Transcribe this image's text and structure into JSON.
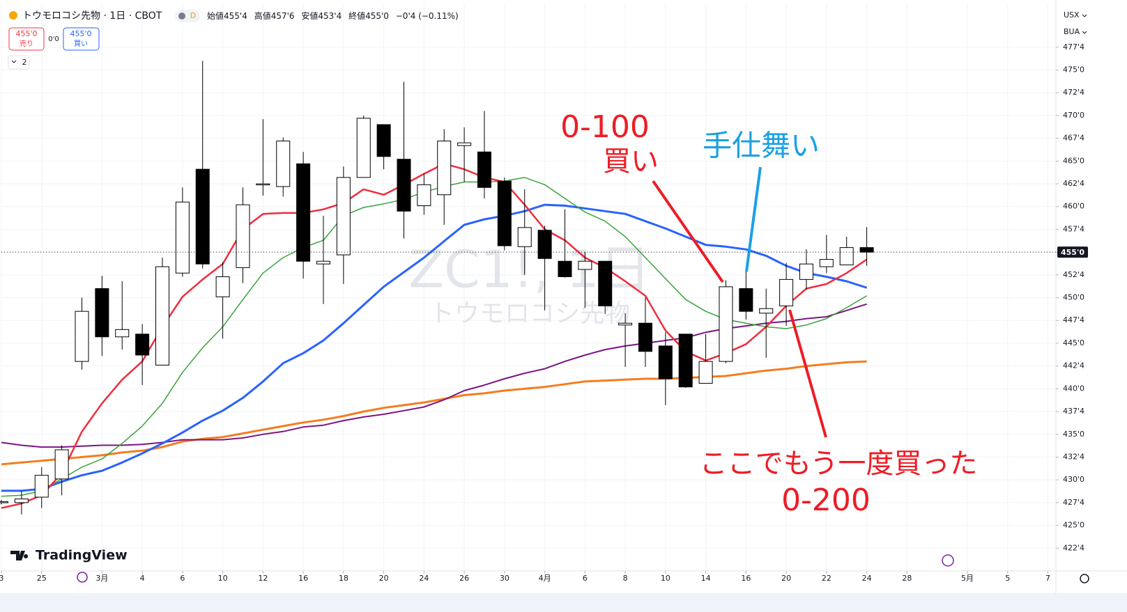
{
  "header": {
    "title": "トウモロコシ先物 · 1日 · CBOT",
    "badge": "D",
    "ohlc": [
      {
        "label": "始値",
        "value": "455'4"
      },
      {
        "label": "高値",
        "value": "457'6"
      },
      {
        "label": "安値",
        "value": "453'4"
      },
      {
        "label": "終値",
        "value": "455'0"
      }
    ],
    "change": "−0'4 (−0.11%)"
  },
  "trade": {
    "sell": {
      "price": "455'0",
      "label": "売り"
    },
    "spread": "0'0",
    "buy": {
      "price": "455'0",
      "label": "買い"
    }
  },
  "indicator_count": "2",
  "currency": "USX",
  "unit": "BUA",
  "watermark": [
    "ZC1!, 1日",
    "トウモロコシ先物"
  ],
  "logo": "TradingView",
  "chart_data": {
    "type": "candlestick",
    "up_color": "#ffffff",
    "down_color": "#000000",
    "x": [
      0,
      1,
      2,
      3,
      4,
      5,
      6,
      7,
      8,
      9,
      10,
      11,
      12,
      13,
      14,
      15,
      16,
      17,
      18,
      19,
      20,
      21,
      22,
      23,
      24,
      25,
      26,
      27,
      28,
      29,
      30,
      31,
      32,
      33,
      34,
      35,
      36,
      37,
      38,
      39,
      40,
      41,
      42,
      43
    ],
    "open": [
      427.5,
      427.5,
      428.1,
      430.1,
      443.0,
      451.0,
      445.7,
      446.0,
      442.6,
      452.7,
      464.1,
      450.1,
      453.3,
      462.4,
      462.2,
      464.7,
      453.7,
      454.7,
      463.2,
      469.0,
      465.2,
      460.1,
      461.3,
      466.7,
      466.0,
      462.8,
      455.6,
      457.4,
      454.0,
      453.1,
      454.0,
      447.0,
      447.2,
      444.7,
      446.0,
      440.6,
      443.0,
      451.0,
      448.3,
      449.1,
      452.0,
      453.4,
      453.6,
      455.5
    ],
    "high": [
      427.8,
      428.8,
      431.4,
      433.8,
      450.0,
      452.4,
      451.8,
      447.1,
      454.4,
      462.1,
      476.0,
      453.9,
      462.1,
      469.6,
      467.6,
      466.0,
      459.0,
      464.4,
      470.0,
      469.0,
      473.7,
      463.6,
      468.5,
      468.7,
      470.5,
      463.2,
      461.9,
      457.9,
      459.7,
      455.0,
      454.0,
      448.3,
      450.0,
      446.2,
      446.0,
      446.0,
      451.9,
      453.0,
      451.0,
      453.8,
      455.3,
      456.9,
      456.7,
      457.75
    ],
    "low": [
      427.3,
      426.2,
      426.9,
      428.3,
      442.1,
      443.6,
      444.3,
      440.4,
      442.6,
      452.3,
      453.2,
      445.5,
      451.6,
      461.2,
      461.1,
      452.1,
      449.3,
      451.5,
      463.2,
      464.1,
      456.5,
      459.1,
      458.0,
      462.7,
      460.9,
      455.2,
      452.5,
      448.6,
      452.2,
      448.9,
      448.2,
      442.4,
      442.4,
      438.2,
      440.1,
      440.6,
      442.8,
      447.6,
      443.4,
      446.9,
      450.9,
      452.7,
      453.6,
      453.5
    ],
    "close": [
      427.6,
      427.9,
      430.5,
      433.3,
      448.5,
      445.7,
      446.5,
      443.7,
      453.4,
      460.5,
      453.7,
      452.3,
      460.2,
      462.5,
      467.2,
      454.0,
      454.0,
      463.2,
      469.7,
      465.5,
      459.5,
      462.4,
      467.2,
      467.0,
      462.1,
      455.7,
      457.7,
      454.3,
      452.3,
      454.0,
      449.1,
      447.2,
      444.1,
      441.1,
      440.2,
      443.0,
      451.2,
      448.5,
      448.8,
      452.0,
      453.7,
      454.2,
      455.5,
      455.0
    ],
    "series": [
      {
        "color": "#f57c1f",
        "width": 3,
        "values": [
          431.7,
          431.9,
          432.1,
          432.3,
          432.5,
          432.7,
          433.0,
          433.2,
          433.6,
          434.2,
          434.5,
          434.7,
          435.1,
          435.5,
          435.9,
          436.3,
          436.6,
          437.0,
          437.5,
          437.9,
          438.2,
          438.5,
          438.9,
          439.3,
          439.5,
          439.8,
          440.0,
          440.2,
          440.5,
          440.8,
          440.9,
          441.0,
          441.1,
          441.1,
          441.2,
          441.3,
          441.4,
          441.7,
          442.0,
          442.2,
          442.5,
          442.7,
          442.9,
          443.0
        ]
      },
      {
        "color": "#7b1582",
        "width": 2,
        "values": [
          434.1,
          433.8,
          433.6,
          433.6,
          433.7,
          433.8,
          433.8,
          433.9,
          434.1,
          434.4,
          434.4,
          434.4,
          434.6,
          435.0,
          435.3,
          435.8,
          436.0,
          436.5,
          436.9,
          437.2,
          437.6,
          438.0,
          438.8,
          439.8,
          440.4,
          441.1,
          441.7,
          442.2,
          443.0,
          443.7,
          444.3,
          444.7,
          445.0,
          445.3,
          445.6,
          446.2,
          446.6,
          446.9,
          447.2,
          447.4,
          447.7,
          447.9,
          448.6,
          449.3
        ]
      },
      {
        "color": "#2962ff",
        "width": 3,
        "values": [
          428.8,
          428.8,
          429.0,
          429.8,
          430.5,
          431.0,
          431.9,
          432.9,
          434.0,
          435.2,
          436.5,
          437.6,
          439.0,
          440.8,
          442.8,
          443.9,
          445.3,
          447.2,
          449.2,
          451.2,
          452.8,
          454.4,
          456.2,
          458.0,
          458.6,
          459.0,
          459.5,
          460.2,
          460.1,
          459.8,
          459.5,
          459.2,
          458.4,
          457.6,
          456.7,
          455.8,
          455.6,
          455.3,
          454.6,
          453.5,
          452.7,
          452.3,
          451.8,
          451.1
        ]
      },
      {
        "color": "#3ba33b",
        "width": 1.5,
        "values": [
          428.2,
          428.3,
          428.8,
          430.1,
          431.4,
          432.3,
          434.0,
          435.9,
          438.4,
          441.8,
          444.5,
          446.8,
          449.8,
          452.7,
          454.4,
          455.5,
          456.3,
          459.0,
          459.9,
          460.3,
          460.8,
          461.6,
          462.2,
          462.7,
          462.7,
          462.8,
          463.2,
          462.4,
          460.9,
          459.4,
          458.4,
          456.7,
          454.4,
          452.1,
          449.8,
          448.5,
          447.6,
          447.2,
          446.8,
          446.6,
          447.0,
          447.7,
          448.9,
          450.2
        ]
      },
      {
        "color": "#ef2c3c",
        "width": 2.5,
        "values": [
          426.9,
          427.4,
          428.3,
          430.7,
          435.3,
          438.4,
          441.0,
          443.0,
          446.8,
          450.1,
          452.0,
          453.7,
          457.5,
          459.2,
          459.3,
          459.3,
          459.7,
          460.4,
          461.9,
          461.3,
          462.4,
          463.6,
          464.7,
          464.1,
          463.2,
          462.7,
          460.2,
          457.5,
          456.3,
          454.4,
          453.3,
          451.8,
          450.2,
          446.4,
          444.1,
          443.1,
          443.9,
          444.9,
          446.8,
          449.1,
          451.0,
          451.5,
          452.7,
          454.2
        ]
      }
    ],
    "last_price": {
      "value": 455,
      "label": "455'0"
    },
    "xlim": [
      0,
      52.4
    ],
    "ylim": [
      420,
      482.3
    ],
    "grid": true,
    "xticks": [
      {
        "value": 0,
        "label": "3"
      },
      {
        "value": 2,
        "label": "25"
      },
      {
        "value": 5,
        "label": "3月"
      },
      {
        "value": 7,
        "label": "4"
      },
      {
        "value": 9,
        "label": "6"
      },
      {
        "value": 11,
        "label": "10"
      },
      {
        "value": 13,
        "label": "12"
      },
      {
        "value": 15,
        "label": "16"
      },
      {
        "value": 17,
        "label": "18"
      },
      {
        "value": 19,
        "label": "20"
      },
      {
        "value": 21,
        "label": "24"
      },
      {
        "value": 23,
        "label": "26"
      },
      {
        "value": 25,
        "label": "30"
      },
      {
        "value": 27,
        "label": "4月"
      },
      {
        "value": 29,
        "label": "6"
      },
      {
        "value": 31,
        "label": "8"
      },
      {
        "value": 33,
        "label": "10"
      },
      {
        "value": 35,
        "label": "14"
      },
      {
        "value": 37,
        "label": "16"
      },
      {
        "value": 39,
        "label": "20"
      },
      {
        "value": 41,
        "label": "22"
      },
      {
        "value": 43,
        "label": "24"
      },
      {
        "value": 45,
        "label": "28"
      },
      {
        "value": 48,
        "label": "5月"
      },
      {
        "value": 50,
        "label": "5"
      },
      {
        "value": 52,
        "label": "7"
      }
    ],
    "yticks": [
      {
        "value": 422.5,
        "label": "422'4"
      },
      {
        "value": 425,
        "label": "425'0"
      },
      {
        "value": 427.5,
        "label": "427'4"
      },
      {
        "value": 430,
        "label": "430'0"
      },
      {
        "value": 432.5,
        "label": "432'4"
      },
      {
        "value": 435,
        "label": "435'0"
      },
      {
        "value": 437.5,
        "label": "437'4"
      },
      {
        "value": 440,
        "label": "440'0"
      },
      {
        "value": 442.5,
        "label": "442'4"
      },
      {
        "value": 445,
        "label": "445'0"
      },
      {
        "value": 447.5,
        "label": "447'4"
      },
      {
        "value": 450,
        "label": "450'0"
      },
      {
        "value": 452.5,
        "label": "452'4"
      },
      {
        "value": 455,
        "label": "455'0"
      },
      {
        "value": 457.5,
        "label": "457'4"
      },
      {
        "value": 460,
        "label": "460'0"
      },
      {
        "value": 462.5,
        "label": "462'4"
      },
      {
        "value": 465,
        "label": "465'0"
      },
      {
        "value": 467.5,
        "label": "467'4"
      },
      {
        "value": 470,
        "label": "470'0"
      },
      {
        "value": 472.5,
        "label": "472'4"
      },
      {
        "value": 475,
        "label": "475'0"
      },
      {
        "value": 477.5,
        "label": "477'4"
      }
    ],
    "annotations": [
      {
        "lines": [
          "0-100",
          "買い"
        ],
        "color": "#ee1c25"
      },
      {
        "lines": [
          "手仕舞い"
        ],
        "color": "#1ba1e2"
      },
      {
        "lines": [
          "ここでもう一度買った",
          "0-200"
        ],
        "color": "#ee1c25"
      }
    ]
  }
}
